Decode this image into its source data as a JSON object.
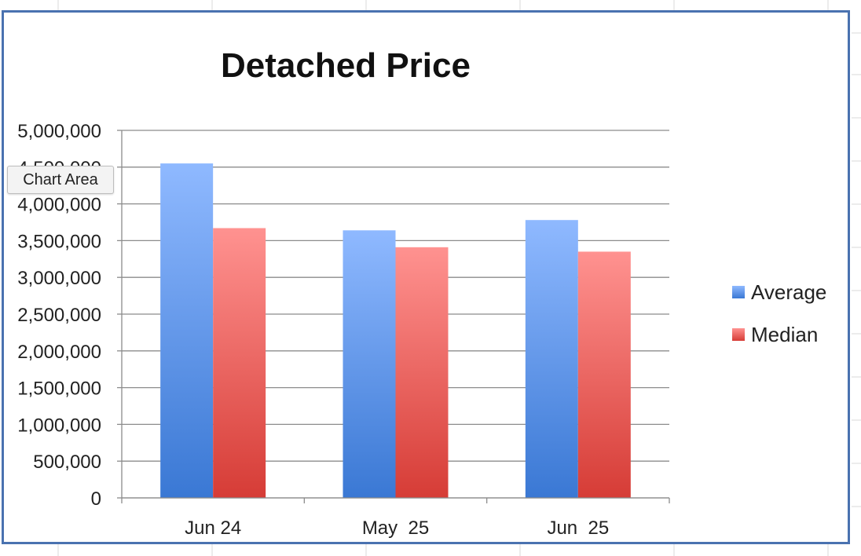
{
  "tooltip": {
    "label": "Chart Area"
  },
  "colors": {
    "average": "#3a78d4",
    "median": "#d63c36",
    "frame": "#4a72b0"
  },
  "chart_data": {
    "type": "bar",
    "title": "Detached Price",
    "categories": [
      "Jun 24",
      "May  25",
      "Jun  25"
    ],
    "series": [
      {
        "name": "Average",
        "values": [
          4550000,
          3640000,
          3780000
        ]
      },
      {
        "name": "Median",
        "values": [
          3670000,
          3410000,
          3350000
        ]
      }
    ],
    "ylim": [
      0,
      5000000
    ],
    "yticks": [
      0,
      500000,
      1000000,
      1500000,
      2000000,
      2500000,
      3000000,
      3500000,
      4000000,
      4500000,
      5000000
    ],
    "ytick_labels": [
      "0",
      "500,000",
      "1,000,000",
      "1,500,000",
      "2,000,000",
      "2,500,000",
      "3,000,000",
      "3,500,000",
      "4,000,000",
      "4,500,000",
      "5,000,000"
    ],
    "grid": true,
    "legend": "right"
  }
}
